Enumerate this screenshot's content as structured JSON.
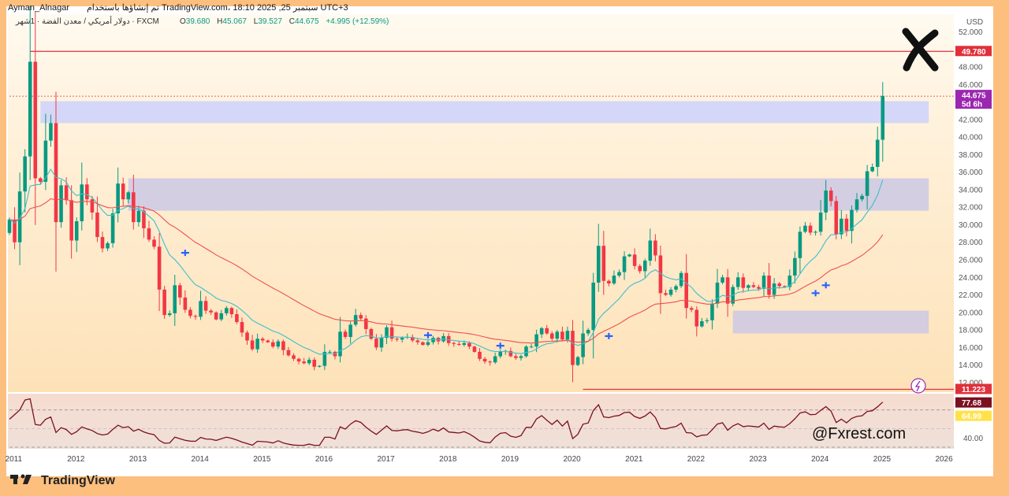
{
  "header": {
    "author": "Ayman_Alnagar",
    "published": "تم إنشاؤها باستخدام TradingView.com، 18:10 2025 ,25 سبتمبر UTC+3",
    "symbol": "دولار أمريكي / معدن الفضة · 1شهر · FXCM",
    "open_label": "O",
    "open": "39.680",
    "high_label": "H",
    "high": "45.067",
    "low_label": "L",
    "low": "39.527",
    "close_label": "C",
    "close": "44.675",
    "change": "+4.995 (+12.59%)"
  },
  "price_axis": {
    "currency": "USD",
    "ticks": [
      "52.000",
      "50.000",
      "48.000",
      "46.000",
      "44.000",
      "42.000",
      "40.000",
      "38.000",
      "36.000",
      "34.000",
      "32.000",
      "30.000",
      "28.000",
      "26.000",
      "24.000",
      "22.000",
      "20.000",
      "18.000",
      "16.000",
      "14.000",
      "12.000"
    ],
    "last_price_tag": "44.675",
    "countdown_tag": "5d 6h",
    "resistance_tag": "49.780",
    "support_tag": "11.223"
  },
  "rsi_axis": {
    "ticks": [
      "40.00"
    ],
    "rsi_tag": "77.68",
    "ma_tag": "64.99"
  },
  "time_axis": {
    "labels": [
      "2011",
      "2012",
      "2013",
      "2014",
      "2015",
      "2016",
      "2017",
      "2018",
      "2019",
      "2020",
      "2021",
      "2022",
      "2023",
      "2024",
      "2025",
      "2026"
    ]
  },
  "watermark": "@Fxrest.com",
  "branding": "TradingView",
  "colors": {
    "up": "#089981",
    "down": "#f23645",
    "zone_top": "#c5cdff",
    "zone_bottom": "#c9c5e6",
    "ema_fast": "#3ebfcc",
    "ema_slow": "#f05050",
    "rsi_line": "#7a1020",
    "resistance": "#e0303a",
    "last_tag": "#9b27b0"
  },
  "chart_data": {
    "type": "candlestick",
    "timeframe": "1M",
    "y_range": [
      11,
      52.5
    ],
    "x_range": [
      "2010-12",
      "2026-02"
    ],
    "price_levels": {
      "resistance": 49.78,
      "support": 11.223,
      "last": 44.675
    },
    "zones": [
      {
        "from": "2011-06",
        "to": "2025-09",
        "low": 41.6,
        "high": 44.1
      },
      {
        "from": "2012-11",
        "to": "2025-09",
        "low": 31.6,
        "high": 35.3
      },
      {
        "from": "2022-08",
        "to": "2025-09",
        "low": 17.6,
        "high": 20.2
      }
    ],
    "close_series": {
      "start": "2010-12",
      "values": [
        30.6,
        28.0,
        33.8,
        37.8,
        48.6,
        35.3,
        34.9,
        39.6,
        41.6,
        30.3,
        34.5,
        32.8,
        28.2,
        30.4,
        34.6,
        32.9,
        31.4,
        28.6,
        27.3,
        27.9,
        31.3,
        34.7,
        32.9,
        33.7,
        30.3,
        31.6,
        29.6,
        28.3,
        27.5,
        22.6,
        19.7,
        19.9,
        23.1,
        21.7,
        20.3,
        19.6,
        19.5,
        21.3,
        20.2,
        20.0,
        19.2,
        19.9,
        20.5,
        19.8,
        18.9,
        17.7,
        16.8,
        15.8,
        17.0,
        16.8,
        16.6,
        16.1,
        16.7,
        15.7,
        15.1,
        14.7,
        14.4,
        14.2,
        14.6,
        13.8,
        13.9,
        15.5,
        15.5,
        15.0,
        17.8,
        17.2,
        18.6,
        19.7,
        19.3,
        18.1,
        17.0,
        16.0,
        17.1,
        18.3,
        17.0,
        16.9,
        17.1,
        17.2,
        16.8,
        16.6,
        16.3,
        16.6,
        17.1,
        16.7,
        17.3,
        16.5,
        16.4,
        16.3,
        16.5,
        16.1,
        15.5,
        14.7,
        14.4,
        14.3,
        15.0,
        15.5,
        15.6,
        15.0,
        14.8,
        15.0,
        16.1,
        16.1,
        17.5,
        18.2,
        17.6,
        17.0,
        17.8,
        16.9,
        17.9,
        14.0,
        14.9,
        17.6,
        18.0,
        23.4,
        27.6,
        23.6,
        23.3,
        24.2,
        24.6,
        26.4,
        26.6,
        25.3,
        24.7,
        25.9,
        28.2,
        26.5,
        22.2,
        22.0,
        22.6,
        23.0,
        24.5,
        20.5,
        20.3,
        18.4,
        19.0,
        19.1,
        21.0,
        23.4,
        24.0,
        21.0,
        22.9,
        24.0,
        22.8,
        23.1,
        22.9,
        22.7,
        24.2,
        22.0,
        23.3,
        23.0,
        22.9,
        24.2,
        26.2,
        29.2,
        29.9,
        29.1,
        29.2,
        31.4,
        33.9,
        32.7,
        28.9,
        30.7,
        29.3,
        31.7,
        32.9,
        33.3,
        36.1,
        36.6,
        39.7,
        44.7
      ]
    },
    "indicators": [
      {
        "name": "EMA (fast)",
        "color": "#3ebfcc"
      },
      {
        "name": "EMA (slow)",
        "color": "#f05050"
      },
      {
        "name": "RSI",
        "last": 77.68,
        "ma_last": 64.99
      }
    ]
  }
}
